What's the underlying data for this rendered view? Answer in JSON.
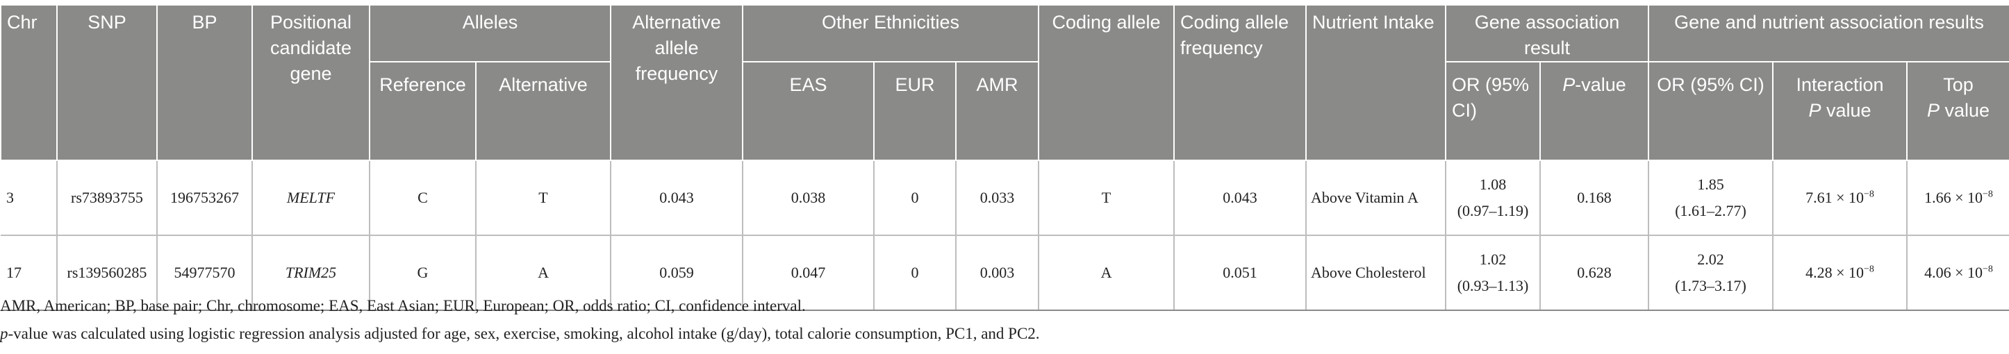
{
  "headers": {
    "chr": "Chr",
    "snp": "SNP",
    "bp": "BP",
    "positional_candidate_gene": "Positional candidate gene",
    "alleles": "Alleles",
    "reference": "Reference",
    "alternative": "Alternative",
    "alternative_allele_frequency": "Alternative allele frequency",
    "other_ethnicities": "Other Ethnicities",
    "eas": "EAS",
    "eur": "EUR",
    "amr": "AMR",
    "coding_allele": "Coding allele",
    "coding_allele_frequency": "Coding allele frequency",
    "nutrient_intake": "Nutrient Intake",
    "gene_association_result": "Gene association result",
    "or_95ci_a": "OR (95% CI)",
    "p_value": "P",
    "p_value_suffix": "-value",
    "gene_nutrient_association_results": "Gene and nutrient association results",
    "or_95ci_b": "OR (95% CI)",
    "interaction": "Interaction",
    "interaction_p": "P",
    "interaction_p_suffix": " value",
    "top": "Top",
    "top_p": "P",
    "top_p_suffix": " value"
  },
  "rows": [
    {
      "chr": "3",
      "snp": "rs73893755",
      "bp": "196753267",
      "gene": "MELTF",
      "reference": "C",
      "alternative": "T",
      "alt_freq": "0.043",
      "eas": "0.038",
      "eur": "0",
      "amr": "0.033",
      "coding_allele": "T",
      "coding_freq": "0.043",
      "nutrient": "Above Vitamin A",
      "or_gene": "1.08",
      "ci_gene": "(0.97–1.19)",
      "p_gene": "0.168",
      "or_int": "1.85",
      "ci_int": "(1.61–2.77)",
      "p_interaction_mantissa": "7.61 × 10",
      "p_interaction_exp": "−8",
      "p_top_mantissa": "1.66 × 10",
      "p_top_exp": "−8"
    },
    {
      "chr": "17",
      "snp": "rs139560285",
      "bp": "54977570",
      "gene": "TRIM25",
      "reference": "G",
      "alternative": "A",
      "alt_freq": "0.059",
      "eas": "0.047",
      "eur": "0",
      "amr": "0.003",
      "coding_allele": "A",
      "coding_freq": "0.051",
      "nutrient": "Above Cholesterol",
      "or_gene": "1.02",
      "ci_gene": "(0.93–1.13)",
      "p_gene": "0.628",
      "or_int": "2.02",
      "ci_int": "(1.73–3.17)",
      "p_interaction_mantissa": "4.28 × 10",
      "p_interaction_exp": "−8",
      "p_top_mantissa": "4.06 × 10",
      "p_top_exp": "−8"
    }
  ],
  "footnotes": {
    "abbreviations": "AMR, American; BP, base pair; Chr, chromosome; EAS, East Asian; EUR, European; OR, odds ratio; CI, confidence interval.",
    "p_symbol": "p",
    "p_note": "-value was calculated using logistic regression analysis adjusted for age, sex, exercise, smoking, alcohol intake (g/day), total calorie consumption, PC1, and PC2."
  }
}
